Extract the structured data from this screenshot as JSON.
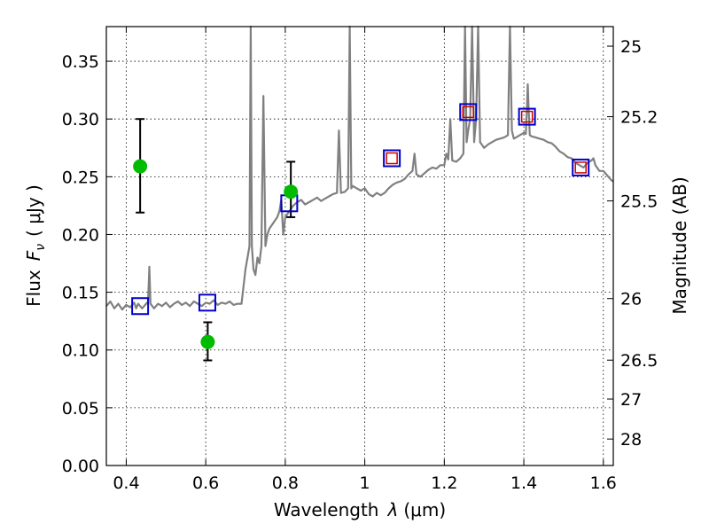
{
  "chart_data": {
    "type": "scatter",
    "xlabel_text": "Wavelength",
    "xlabel_math": "λ",
    "xlabel_unit": "(μm)",
    "ylabel_text": "Flux",
    "ylabel_math": "F",
    "ylabel_sub": "ν",
    "ylabel_unit": "( μJy )",
    "y2label": "Magnitude (AB)",
    "xlim": [
      0.35,
      1.625
    ],
    "ylim": [
      0.0,
      0.38
    ],
    "grid": true,
    "x_ticks": [
      {
        "value": 0.4,
        "label": "0.4"
      },
      {
        "value": 0.6,
        "label": "0.6"
      },
      {
        "value": 0.8,
        "label": "0.8"
      },
      {
        "value": 1.0,
        "label": "1"
      },
      {
        "value": 1.2,
        "label": "1.2"
      },
      {
        "value": 1.4,
        "label": "1.4"
      },
      {
        "value": 1.6,
        "label": "1.6"
      }
    ],
    "y_ticks": [
      {
        "value": 0.0,
        "label": "0.00"
      },
      {
        "value": 0.05,
        "label": "0.05"
      },
      {
        "value": 0.1,
        "label": "0.10"
      },
      {
        "value": 0.15,
        "label": "0.15"
      },
      {
        "value": 0.2,
        "label": "0.20"
      },
      {
        "value": 0.25,
        "label": "0.25"
      },
      {
        "value": 0.3,
        "label": "0.30"
      },
      {
        "value": 0.35,
        "label": "0.35"
      }
    ],
    "mag_ticks": [
      {
        "value": 25,
        "label": "25"
      },
      {
        "value": 25.2,
        "label": "25.2"
      },
      {
        "value": 25.5,
        "label": "25.5"
      },
      {
        "value": 26,
        "label": "26"
      },
      {
        "value": 26.5,
        "label": "26.5"
      },
      {
        "value": 27,
        "label": "27"
      },
      {
        "value": 28,
        "label": "28"
      }
    ],
    "colors": {
      "spectrum": "#808080",
      "observed": "#00bb00",
      "model_box": "#0000cc",
      "model_box_inner": "#cc0000",
      "errorbar": "#000000"
    },
    "spectrum": [
      [
        0.35,
        0.138
      ],
      [
        0.36,
        0.142
      ],
      [
        0.37,
        0.136
      ],
      [
        0.38,
        0.14
      ],
      [
        0.39,
        0.135
      ],
      [
        0.4,
        0.139
      ],
      [
        0.41,
        0.137
      ],
      [
        0.42,
        0.141
      ],
      [
        0.425,
        0.136
      ],
      [
        0.43,
        0.14
      ],
      [
        0.435,
        0.138
      ],
      [
        0.44,
        0.136
      ],
      [
        0.45,
        0.14
      ],
      [
        0.455,
        0.142
      ],
      [
        0.458,
        0.172
      ],
      [
        0.461,
        0.14
      ],
      [
        0.47,
        0.136
      ],
      [
        0.48,
        0.14
      ],
      [
        0.49,
        0.138
      ],
      [
        0.5,
        0.141
      ],
      [
        0.51,
        0.137
      ],
      [
        0.52,
        0.14
      ],
      [
        0.53,
        0.142
      ],
      [
        0.54,
        0.139
      ],
      [
        0.55,
        0.141
      ],
      [
        0.56,
        0.138
      ],
      [
        0.57,
        0.142
      ],
      [
        0.58,
        0.14
      ],
      [
        0.59,
        0.138
      ],
      [
        0.6,
        0.141
      ],
      [
        0.61,
        0.14
      ],
      [
        0.62,
        0.143
      ],
      [
        0.63,
        0.139
      ],
      [
        0.64,
        0.141
      ],
      [
        0.65,
        0.14
      ],
      [
        0.66,
        0.142
      ],
      [
        0.67,
        0.139
      ],
      [
        0.68,
        0.14
      ],
      [
        0.69,
        0.14
      ],
      [
        0.7,
        0.17
      ],
      [
        0.705,
        0.18
      ],
      [
        0.71,
        0.19
      ],
      [
        0.713,
        0.4
      ],
      [
        0.716,
        0.19
      ],
      [
        0.72,
        0.17
      ],
      [
        0.725,
        0.165
      ],
      [
        0.73,
        0.18
      ],
      [
        0.735,
        0.175
      ],
      [
        0.74,
        0.19
      ],
      [
        0.745,
        0.32
      ],
      [
        0.75,
        0.19
      ],
      [
        0.755,
        0.2
      ],
      [
        0.76,
        0.205
      ],
      [
        0.77,
        0.21
      ],
      [
        0.78,
        0.215
      ],
      [
        0.785,
        0.22
      ],
      [
        0.79,
        0.23
      ],
      [
        0.795,
        0.2
      ],
      [
        0.8,
        0.215
      ],
      [
        0.81,
        0.22
      ],
      [
        0.82,
        0.225
      ],
      [
        0.83,
        0.228
      ],
      [
        0.84,
        0.23
      ],
      [
        0.85,
        0.226
      ],
      [
        0.86,
        0.228
      ],
      [
        0.87,
        0.23
      ],
      [
        0.88,
        0.232
      ],
      [
        0.89,
        0.229
      ],
      [
        0.9,
        0.231
      ],
      [
        0.91,
        0.233
      ],
      [
        0.92,
        0.235
      ],
      [
        0.93,
        0.236
      ],
      [
        0.935,
        0.29
      ],
      [
        0.94,
        0.236
      ],
      [
        0.95,
        0.237
      ],
      [
        0.958,
        0.24
      ],
      [
        0.962,
        0.4
      ],
      [
        0.966,
        0.24
      ],
      [
        0.97,
        0.242
      ],
      [
        0.98,
        0.24
      ],
      [
        0.99,
        0.238
      ],
      [
        1.0,
        0.24
      ],
      [
        1.01,
        0.235
      ],
      [
        1.02,
        0.233
      ],
      [
        1.03,
        0.236
      ],
      [
        1.04,
        0.234
      ],
      [
        1.05,
        0.236
      ],
      [
        1.06,
        0.24
      ],
      [
        1.07,
        0.243
      ],
      [
        1.08,
        0.245
      ],
      [
        1.09,
        0.246
      ],
      [
        1.1,
        0.248
      ],
      [
        1.11,
        0.252
      ],
      [
        1.12,
        0.255
      ],
      [
        1.125,
        0.27
      ],
      [
        1.13,
        0.252
      ],
      [
        1.14,
        0.25
      ],
      [
        1.15,
        0.253
      ],
      [
        1.16,
        0.256
      ],
      [
        1.17,
        0.258
      ],
      [
        1.18,
        0.257
      ],
      [
        1.19,
        0.26
      ],
      [
        1.2,
        0.26
      ],
      [
        1.205,
        0.27
      ],
      [
        1.21,
        0.265
      ],
      [
        1.215,
        0.3
      ],
      [
        1.22,
        0.264
      ],
      [
        1.23,
        0.263
      ],
      [
        1.24,
        0.266
      ],
      [
        1.248,
        0.27
      ],
      [
        1.252,
        0.4
      ],
      [
        1.256,
        0.28
      ],
      [
        1.26,
        0.29
      ],
      [
        1.265,
        0.3
      ],
      [
        1.27,
        0.4
      ],
      [
        1.275,
        0.28
      ],
      [
        1.28,
        0.3
      ],
      [
        1.285,
        0.4
      ],
      [
        1.29,
        0.28
      ],
      [
        1.3,
        0.275
      ],
      [
        1.31,
        0.278
      ],
      [
        1.32,
        0.28
      ],
      [
        1.33,
        0.282
      ],
      [
        1.34,
        0.283
      ],
      [
        1.35,
        0.284
      ],
      [
        1.355,
        0.285
      ],
      [
        1.36,
        0.286
      ],
      [
        1.365,
        0.4
      ],
      [
        1.37,
        0.29
      ],
      [
        1.375,
        0.283
      ],
      [
        1.38,
        0.284
      ],
      [
        1.39,
        0.286
      ],
      [
        1.4,
        0.288
      ],
      [
        1.405,
        0.287
      ],
      [
        1.408,
        0.31
      ],
      [
        1.41,
        0.33
      ],
      [
        1.412,
        0.31
      ],
      [
        1.415,
        0.286
      ],
      [
        1.42,
        0.285
      ],
      [
        1.43,
        0.284
      ],
      [
        1.44,
        0.283
      ],
      [
        1.45,
        0.282
      ],
      [
        1.46,
        0.28
      ],
      [
        1.47,
        0.279
      ],
      [
        1.48,
        0.276
      ],
      [
        1.49,
        0.272
      ],
      [
        1.5,
        0.27
      ],
      [
        1.51,
        0.267
      ],
      [
        1.52,
        0.266
      ],
      [
        1.53,
        0.262
      ],
      [
        1.54,
        0.26
      ],
      [
        1.55,
        0.258
      ],
      [
        1.56,
        0.262
      ],
      [
        1.57,
        0.264
      ],
      [
        1.575,
        0.266
      ],
      [
        1.58,
        0.26
      ],
      [
        1.59,
        0.255
      ],
      [
        1.6,
        0.255
      ],
      [
        1.61,
        0.251
      ],
      [
        1.62,
        0.247
      ],
      [
        1.625,
        0.246
      ]
    ],
    "observed_points": [
      {
        "x": 0.435,
        "y": 0.259,
        "yerr_low": 0.219,
        "yerr_high": 0.3
      },
      {
        "x": 0.605,
        "y": 0.107,
        "yerr_low": 0.091,
        "yerr_high": 0.124
      },
      {
        "x": 0.814,
        "y": 0.237,
        "yerr_low": 0.215,
        "yerr_high": 0.263
      }
    ],
    "model_boxes": [
      {
        "x": 0.435,
        "y": 0.138,
        "inner": false
      },
      {
        "x": 0.604,
        "y": 0.141,
        "inner": false
      },
      {
        "x": 0.81,
        "y": 0.227,
        "inner": false
      },
      {
        "x": 1.068,
        "y": 0.266,
        "inner": true
      },
      {
        "x": 1.26,
        "y": 0.306,
        "inner": true
      },
      {
        "x": 1.408,
        "y": 0.302,
        "inner": true
      },
      {
        "x": 1.543,
        "y": 0.258,
        "inner": true
      }
    ]
  }
}
